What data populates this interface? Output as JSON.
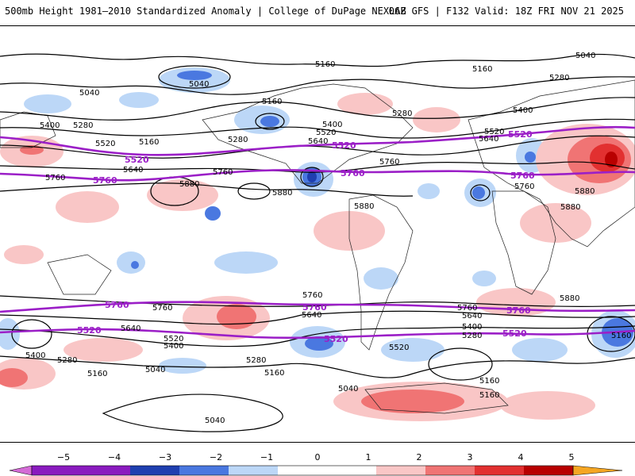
{
  "header": {
    "left_title": "500mb Height 1981–2010 Standardized Anomaly | College of DuPage NEXLAB",
    "right_title": "06Z GFS | F132 Valid: 18Z FRI NOV 21 2025"
  },
  "map": {
    "variable": "500mb Height",
    "contour_labels": [
      "5040",
      "5160",
      "5280",
      "5400",
      "5520",
      "5640",
      "5760",
      "5880"
    ],
    "climo_labels": [
      "5520",
      "5760"
    ],
    "colors": {
      "contour": "#000000",
      "climo": "#9b1fc7",
      "neg5": "#cc66dd",
      "neg4": "#6a0dad",
      "neg3": "#1f3fb0",
      "neg2": "#4a78e0",
      "neg1": "#bcd7f7",
      "pos1": "#f9c6c6",
      "pos2": "#f07474",
      "pos3": "#e23030",
      "pos4": "#b80000",
      "pos5": "#f5a623"
    }
  },
  "colorbar": {
    "ticks": [
      "−5",
      "−4",
      "−3",
      "−2",
      "−1",
      "0",
      "1",
      "2",
      "3",
      "4",
      "5"
    ],
    "colors": [
      "#d46bd6",
      "#8a1bbf",
      "#1f3fb0",
      "#4a78e0",
      "#bcd7f7",
      "#ffffff",
      "#ffffff",
      "#f9c6c6",
      "#f07474",
      "#e23030",
      "#b80000",
      "#f5a623"
    ]
  }
}
